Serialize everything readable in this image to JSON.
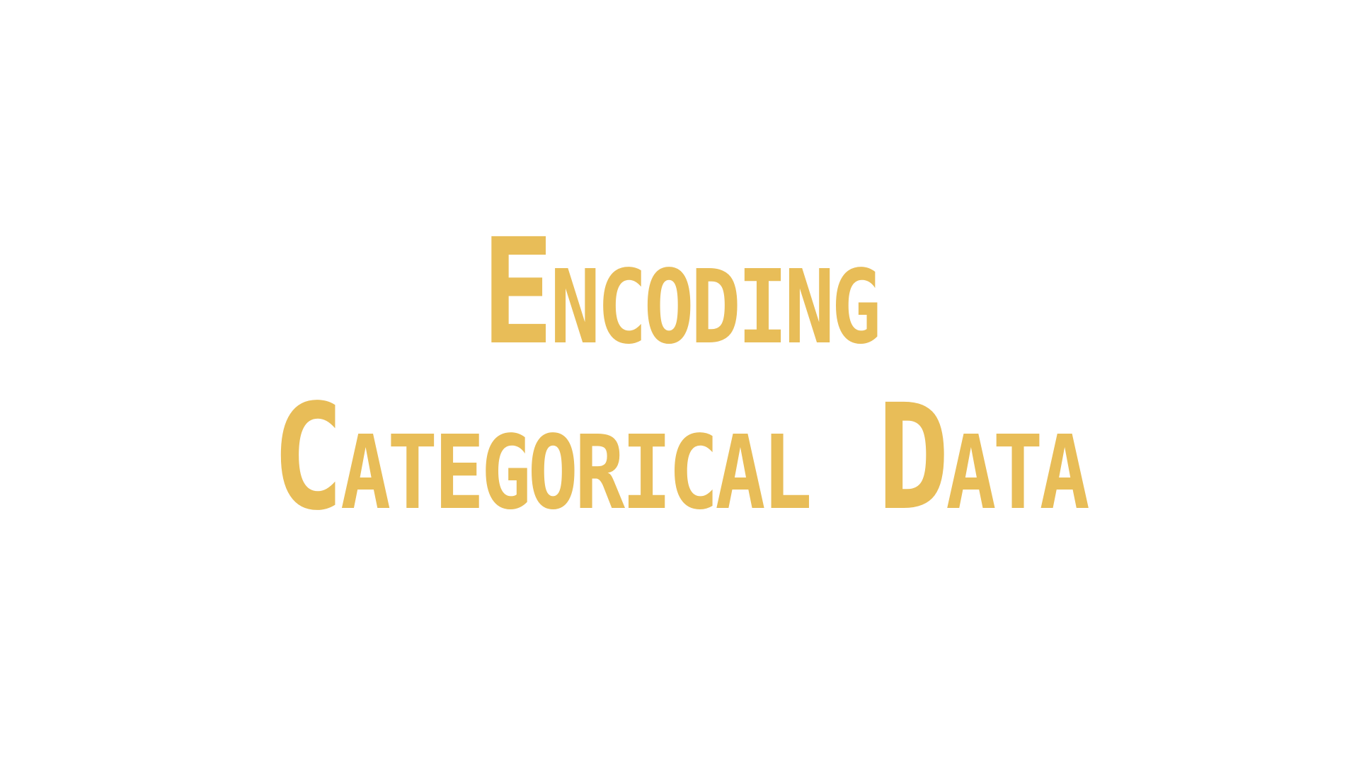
{
  "slide": {
    "title_line_1": "Encoding",
    "title_line_2": "Categorical Data",
    "text_color": "#e8bd58",
    "background_color": "#ffffff"
  }
}
